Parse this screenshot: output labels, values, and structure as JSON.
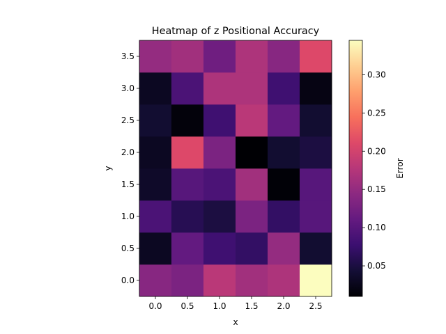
{
  "chart_data": {
    "type": "heatmap",
    "title": "Heatmap of z Positional Accuracy",
    "xlabel": "x",
    "ylabel": "y",
    "x_ticks": [
      "0.0",
      "0.5",
      "1.0",
      "1.5",
      "2.0",
      "2.5"
    ],
    "y_ticks": [
      "0.0",
      "0.5",
      "1.0",
      "1.5",
      "2.0",
      "2.5",
      "3.0",
      "3.5"
    ],
    "x": [
      0.0,
      0.5,
      1.0,
      1.5,
      2.0,
      2.5
    ],
    "y": [
      0.0,
      0.5,
      1.0,
      1.5,
      2.0,
      2.5,
      3.0,
      3.5
    ],
    "xlim": [
      -0.25,
      2.75
    ],
    "ylim": [
      -0.25,
      3.75
    ],
    "values": [
      [
        0.14,
        0.13,
        0.18,
        0.16,
        0.17,
        0.345
      ],
      [
        0.03,
        0.11,
        0.08,
        0.07,
        0.15,
        0.04
      ],
      [
        0.09,
        0.06,
        0.05,
        0.13,
        0.07,
        0.1
      ],
      [
        0.035,
        0.1,
        0.09,
        0.16,
        0.012,
        0.1
      ],
      [
        0.03,
        0.21,
        0.13,
        0.01,
        0.04,
        0.05
      ],
      [
        0.04,
        0.015,
        0.08,
        0.18,
        0.11,
        0.04
      ],
      [
        0.03,
        0.09,
        0.17,
        0.17,
        0.08,
        0.02
      ],
      [
        0.15,
        0.16,
        0.12,
        0.17,
        0.14,
        0.21
      ]
    ],
    "colorbar": {
      "label": "Error",
      "colormap": "magma",
      "vmin": 0.01,
      "vmax": 0.345,
      "ticks": [
        0.05,
        0.1,
        0.15,
        0.2,
        0.25,
        0.3
      ],
      "tick_labels": [
        "0.05",
        "0.10",
        "0.15",
        "0.20",
        "0.25",
        "0.30"
      ]
    },
    "grid": false
  }
}
